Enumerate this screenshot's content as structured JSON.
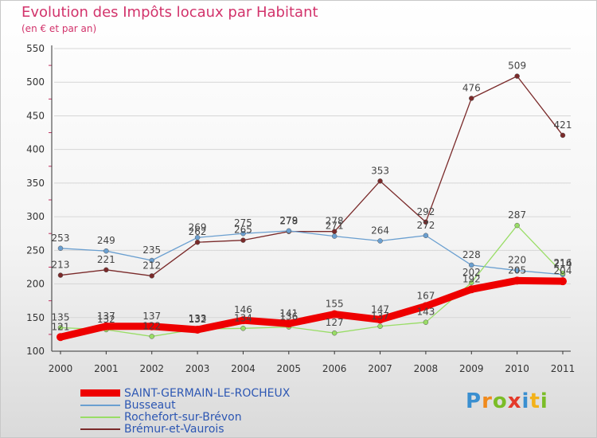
{
  "chart_data": {
    "type": "line",
    "title": "Evolution des Impôts locaux par Habitant",
    "subtitle": "(en € et par an)",
    "xlabel": "",
    "ylabel": "",
    "ylim": [
      100,
      550
    ],
    "yticks": [
      100,
      150,
      200,
      250,
      300,
      350,
      400,
      450,
      500,
      550
    ],
    "x": [
      "2000",
      "2001",
      "2002",
      "2003",
      "2004",
      "2005",
      "2006",
      "2007",
      "2008",
      "2009",
      "2010",
      "2011"
    ],
    "series": [
      {
        "name": "SAINT-GERMAIN-LE-ROCHEUX",
        "color": "#ee0000",
        "values": [
          121,
          137,
          137,
          132,
          146,
          141,
          155,
          147,
          167,
          192,
          205,
          204
        ],
        "labels": [
          "121",
          "137",
          "137",
          "132",
          "146",
          "141",
          "155",
          "147",
          "167",
          "192",
          "205",
          "204"
        ]
      },
      {
        "name": "Busseaut",
        "color": "#6a9fd0",
        "values": [
          253,
          249,
          235,
          269,
          275,
          279,
          271,
          264,
          272,
          228,
          220,
          214
        ],
        "labels": [
          "253",
          "249",
          "235",
          "269",
          "275",
          "279",
          "271",
          "264",
          "272",
          "228",
          "220",
          "214"
        ]
      },
      {
        "name": "Rochefort-sur-Brévon",
        "color": "#99dd66",
        "values": [
          135,
          132,
          122,
          133,
          134,
          136,
          127,
          137,
          143,
          202,
          287,
          216
        ],
        "labels": [
          "135",
          "132",
          "122",
          "133",
          "134",
          "136",
          "127",
          "137",
          "143",
          "202",
          "287",
          "216"
        ]
      },
      {
        "name": "Brémur-et-Vaurois",
        "color": "#7a2a2a",
        "values": [
          213,
          221,
          212,
          262,
          265,
          278,
          278,
          353,
          292,
          476,
          509,
          421
        ],
        "labels": [
          "213",
          "221",
          "212",
          "262",
          "265",
          "278",
          "278",
          "353",
          "292",
          "476",
          "509",
          "421"
        ]
      }
    ]
  },
  "logo": {
    "l1": "P",
    "l2": "r",
    "l3": "o",
    "l4": "x",
    "l5": "i",
    "l6": "t",
    "l7": "i"
  }
}
